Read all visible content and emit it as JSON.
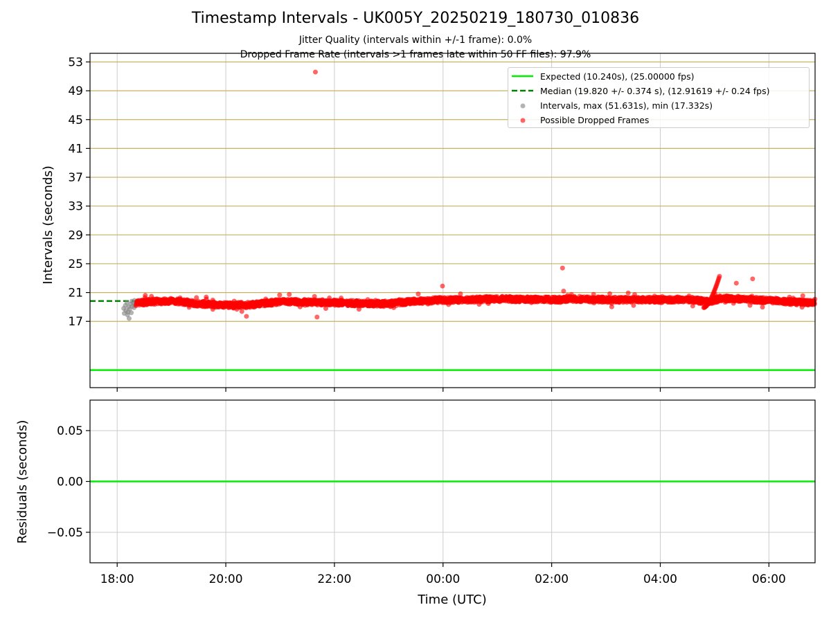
{
  "figure": {
    "title": "Timestamp Intervals - UK005Y_20250219_180730_010836",
    "subtitle_1": "Jitter Quality (intervals within +/-1 frame): 0.0%",
    "subtitle_2": "Dropped Frame Rate (intervals >1 frames late within 50 FF files): 97.9%"
  },
  "colors": {
    "expected": "#00ee00",
    "median": "#008000",
    "intervals": "#808080",
    "dropped": "#ff0000",
    "hgrid": "#c8b060",
    "vgrid": "#cccccc"
  },
  "chart_data": [
    {
      "type": "scatter",
      "panel": "intervals",
      "ylabel": "Intervals (seconds)",
      "ylim": [
        7.8,
        54.2
      ],
      "yticks": [
        "53",
        "49",
        "45",
        "41",
        "37",
        "33",
        "29",
        "25",
        "21",
        "17"
      ],
      "ytick_values": [
        53,
        49,
        45,
        41,
        37,
        33,
        29,
        25,
        21,
        17
      ],
      "xlim_hours": [
        17.5,
        30.85
      ],
      "xtick_hours": [
        18,
        20,
        22,
        24,
        26,
        28,
        30
      ],
      "grid": true,
      "legend_position": "upper right",
      "expected_line": {
        "value": 10.24,
        "label": "Expected (10.240s), (25.00000 fps)"
      },
      "median_line": {
        "value": 19.82,
        "x_end_hour": 18.33,
        "label": "Median (19.820 +/- 0.374 s), (12.91619 +/- 0.24 fps)"
      },
      "series": [
        {
          "name": "Intervals, max (51.631s), min (17.332s)",
          "points": [
            [
              18.12,
              18.8
            ],
            [
              18.13,
              18.1
            ],
            [
              18.15,
              19.2
            ],
            [
              18.16,
              18.5
            ],
            [
              18.18,
              19.6
            ],
            [
              18.19,
              17.9
            ],
            [
              18.2,
              18.3
            ],
            [
              18.21,
              19.0
            ],
            [
              18.22,
              17.4
            ],
            [
              18.23,
              18.7
            ],
            [
              18.25,
              19.4
            ],
            [
              18.26,
              18.2
            ],
            [
              18.27,
              19.8
            ],
            [
              18.28,
              19.1
            ],
            [
              18.3,
              19.6
            ],
            [
              18.31,
              18.9
            ],
            [
              18.32,
              19.9
            ],
            [
              18.33,
              19.3
            ]
          ]
        },
        {
          "name": "Possible Dropped Frames",
          "outliers": [
            [
              21.65,
              51.6
            ],
            [
              21.68,
              17.6
            ],
            [
              20.38,
              17.7
            ],
            [
              23.99,
              21.9
            ],
            [
              26.2,
              24.4
            ],
            [
              26.22,
              21.2
            ],
            [
              29.4,
              22.3
            ],
            [
              29.7,
              22.9
            ]
          ],
          "baseline_knots": [
            [
              18.35,
              19.55
            ],
            [
              18.6,
              19.7
            ],
            [
              19.0,
              19.85
            ],
            [
              19.5,
              19.45
            ],
            [
              20.0,
              19.25
            ],
            [
              20.5,
              19.3
            ],
            [
              21.0,
              19.75
            ],
            [
              21.5,
              19.65
            ],
            [
              22.0,
              19.6
            ],
            [
              22.5,
              19.5
            ],
            [
              23.0,
              19.45
            ],
            [
              23.5,
              19.8
            ],
            [
              24.0,
              19.95
            ],
            [
              24.5,
              20.0
            ],
            [
              25.0,
              20.1
            ],
            [
              25.5,
              20.05
            ],
            [
              26.0,
              20.0
            ],
            [
              26.5,
              20.1
            ],
            [
              27.0,
              20.0
            ],
            [
              27.5,
              20.0
            ],
            [
              28.0,
              20.0
            ],
            [
              28.5,
              20.05
            ],
            [
              28.9,
              19.7
            ],
            [
              29.1,
              20.2
            ],
            [
              29.5,
              20.1
            ],
            [
              30.0,
              19.9
            ],
            [
              30.5,
              19.65
            ],
            [
              30.85,
              19.55
            ]
          ],
          "spike": {
            "from_hour": 28.8,
            "to_hour": 29.1,
            "min": 18.9,
            "max": 23.5
          }
        }
      ]
    },
    {
      "type": "line",
      "panel": "residuals",
      "ylabel": "Residuals (seconds)",
      "xlabel": "Time (UTC)",
      "ylim": [
        -0.08,
        0.08
      ],
      "yticks": [
        "0.05",
        "0.00",
        "−0.05"
      ],
      "ytick_values": [
        0.05,
        0.0,
        -0.05
      ],
      "xticks": [
        "18:00",
        "20:00",
        "22:00",
        "00:00",
        "02:00",
        "04:00",
        "06:00"
      ],
      "xtick_hours": [
        18,
        20,
        22,
        24,
        26,
        28,
        30
      ],
      "grid": true,
      "series": [
        {
          "name": "",
          "x_hours": [
            17.5,
            30.85
          ],
          "values": [
            0.0,
            0.0
          ]
        }
      ]
    }
  ]
}
